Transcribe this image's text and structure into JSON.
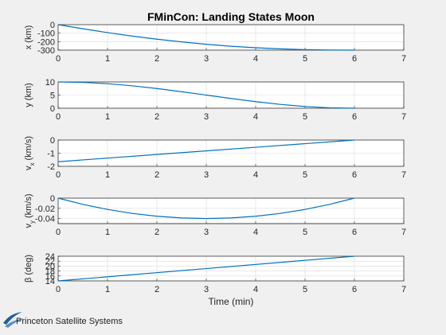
{
  "window": {
    "background": "#f0f0f0"
  },
  "brand": {
    "name": "Princeton Satellite Systems",
    "icon": "pss-swoosh-logo",
    "color": "#1f5f9e"
  },
  "chart_data": [
    {
      "type": "line",
      "title": "FMinCon: Landing States Moon",
      "xlabel": "",
      "ylabel": "x (km)",
      "xlim": [
        0,
        7
      ],
      "ylim": [
        -300,
        0
      ],
      "xticks": [
        "0",
        "1",
        "2",
        "3",
        "4",
        "5",
        "6",
        "7"
      ],
      "yticks": [
        "0",
        "-100",
        "-200",
        "-300"
      ],
      "grid": true,
      "series": [
        {
          "color": "#0072bd",
          "x": [
            0,
            0.5,
            1,
            1.5,
            2,
            2.5,
            3,
            3.5,
            4,
            4.5,
            5,
            5.5,
            6
          ],
          "y": [
            0,
            -48,
            -93,
            -135,
            -171,
            -203,
            -231,
            -254,
            -272,
            -285,
            -294,
            -299,
            -300
          ]
        }
      ]
    },
    {
      "type": "line",
      "title": "",
      "xlabel": "",
      "ylabel": "y (km)",
      "xlim": [
        0,
        7
      ],
      "ylim": [
        0,
        10
      ],
      "xticks": [
        "0",
        "1",
        "2",
        "3",
        "4",
        "5",
        "6",
        "7"
      ],
      "yticks": [
        "10",
        "5",
        "0"
      ],
      "grid": true,
      "series": [
        {
          "color": "#0072bd",
          "x": [
            0,
            0.5,
            1,
            1.5,
            2,
            2.5,
            3,
            3.5,
            4,
            4.5,
            5,
            5.5,
            6
          ],
          "y": [
            10,
            9.83,
            9.34,
            8.54,
            7.5,
            6.29,
            5.0,
            3.71,
            2.5,
            1.46,
            0.66,
            0.17,
            0
          ]
        }
      ]
    },
    {
      "type": "line",
      "title": "",
      "xlabel": "",
      "ylabel": "vx (km/s)",
      "ylabel_main": "v",
      "ylabel_sub": "x",
      "ylabel_unit": " (km/s)",
      "xlim": [
        0,
        7
      ],
      "ylim": [
        -2,
        0
      ],
      "xticks": [
        "0",
        "1",
        "2",
        "3",
        "4",
        "5",
        "6",
        "7"
      ],
      "yticks": [
        "0",
        "-1",
        "-2"
      ],
      "grid": true,
      "series": [
        {
          "color": "#0072bd",
          "x": [
            0,
            1,
            2,
            3,
            4,
            5,
            6
          ],
          "y": [
            -1.65,
            -1.375,
            -1.1,
            -0.825,
            -0.55,
            -0.275,
            0
          ]
        }
      ]
    },
    {
      "type": "line",
      "title": "",
      "xlabel": "",
      "ylabel": "vy (km/s)",
      "ylabel_main": "v",
      "ylabel_sub": "y",
      "ylabel_unit": " (km/s)",
      "xlim": [
        0,
        7
      ],
      "ylim": [
        -0.05,
        0
      ],
      "xticks": [
        "0",
        "1",
        "2",
        "3",
        "4",
        "5",
        "6",
        "7"
      ],
      "yticks": [
        "0",
        "-0.02",
        "-0.04"
      ],
      "grid": true,
      "series": [
        {
          "color": "#0072bd",
          "x": [
            0,
            0.5,
            1,
            1.5,
            2,
            2.5,
            3,
            3.5,
            4,
            4.5,
            5,
            5.5,
            6
          ],
          "y": [
            0,
            -0.0122,
            -0.0222,
            -0.03,
            -0.0356,
            -0.0389,
            -0.04,
            -0.0389,
            -0.0356,
            -0.03,
            -0.0222,
            -0.0122,
            0
          ]
        }
      ]
    },
    {
      "type": "line",
      "title": "",
      "xlabel": "Time (min)",
      "ylabel": "β (deg)",
      "ylabel_main": "β",
      "ylabel_sub": "",
      "ylabel_unit": " (deg)",
      "xlim": [
        0,
        7
      ],
      "ylim": [
        14,
        24
      ],
      "xticks": [
        "0",
        "1",
        "2",
        "3",
        "4",
        "5",
        "6",
        "7"
      ],
      "yticks": [
        "24",
        "22",
        "20",
        "18",
        "16",
        "14"
      ],
      "grid": true,
      "series": [
        {
          "color": "#0072bd",
          "x": [
            0,
            6
          ],
          "y": [
            14,
            24
          ]
        }
      ]
    }
  ]
}
